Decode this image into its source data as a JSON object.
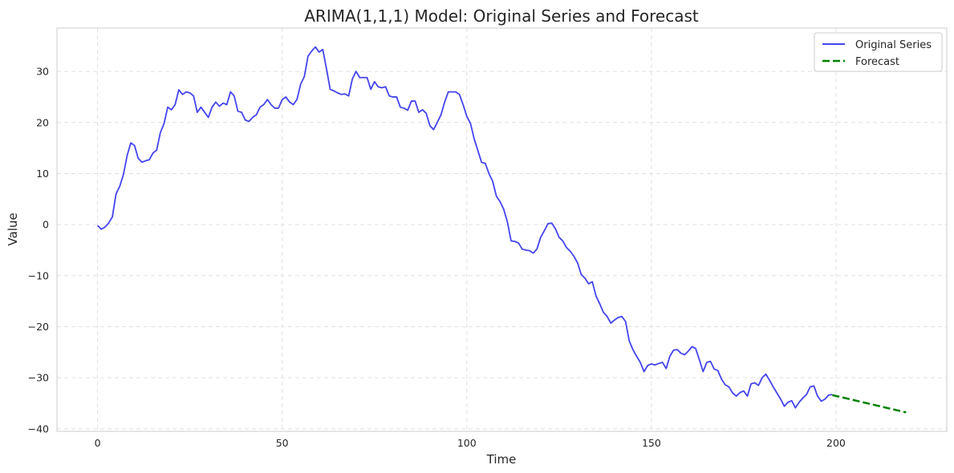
{
  "chart_data": {
    "type": "line",
    "title": "ARIMA(1,1,1) Model: Original Series and Forecast",
    "xlabel": "Time",
    "ylabel": "Value",
    "xlim": [
      -11,
      230
    ],
    "ylim": [
      -40.5,
      38.5
    ],
    "xticks": [
      0,
      50,
      100,
      150,
      200
    ],
    "xtick_labels": [
      "0",
      "50",
      "100",
      "150",
      "200"
    ],
    "yticks": [
      -40,
      -30,
      -20,
      -10,
      0,
      10,
      20,
      30
    ],
    "ytick_labels": [
      "−40",
      "−30",
      "−20",
      "−10",
      "0",
      "10",
      "20",
      "30"
    ],
    "grid": true,
    "legend_position": "top-right",
    "series": [
      {
        "name": "Original Series",
        "color": "#4444ee",
        "style": "solid",
        "x_start": 0,
        "values": [
          -0.2,
          -0.9,
          -0.5,
          0.3,
          1.5,
          6.0,
          7.5,
          9.8,
          13.5,
          16.0,
          15.5,
          13.0,
          12.2,
          12.5,
          12.7,
          14.0,
          14.6,
          18.0,
          19.8,
          23.0,
          22.5,
          23.5,
          26.4,
          25.5,
          26.0,
          25.8,
          25.2,
          22.0,
          23.0,
          22.0,
          21.0,
          23.0,
          24.0,
          23.2,
          23.8,
          23.5,
          26.0,
          25.2,
          22.2,
          22.0,
          20.5,
          20.2,
          21.0,
          21.5,
          23.0,
          23.5,
          24.5,
          23.5,
          22.8,
          22.8,
          24.5,
          25.0,
          24.0,
          23.5,
          24.5,
          27.5,
          29.0,
          33.0,
          34.0,
          34.8,
          33.8,
          34.3,
          30.5,
          26.5,
          26.2,
          25.8,
          25.5,
          25.6,
          25.2,
          28.5,
          30.0,
          28.8,
          28.8,
          28.8,
          26.5,
          28.0,
          27.0,
          26.8,
          27.0,
          25.2,
          25.0,
          25.0,
          23.0,
          22.8,
          22.4,
          24.2,
          24.2,
          22.0,
          22.5,
          21.8,
          19.4,
          18.6,
          20.0,
          21.5,
          24.0,
          26.0,
          26.0,
          26.0,
          25.5,
          23.5,
          21.2,
          19.8,
          16.8,
          14.5,
          12.2,
          12.0,
          10.0,
          8.5,
          5.6,
          4.5,
          3.0,
          0.5,
          -3.2,
          -3.3,
          -3.6,
          -4.8,
          -5.0,
          -5.1,
          -5.6,
          -4.8,
          -2.5,
          -1.2,
          0.2,
          0.3,
          -0.8,
          -2.5,
          -3.2,
          -4.5,
          -5.2,
          -6.2,
          -7.5,
          -9.8,
          -10.5,
          -11.6,
          -11.2,
          -14.0,
          -15.5,
          -17.2,
          -18.0,
          -19.3,
          -18.7,
          -18.2,
          -18.0,
          -19.0,
          -22.8,
          -24.5,
          -25.8,
          -27.0,
          -28.8,
          -27.6,
          -27.3,
          -27.5,
          -27.2,
          -27.0,
          -28.2,
          -25.8,
          -24.6,
          -24.5,
          -25.2,
          -25.5,
          -24.8,
          -23.9,
          -24.3,
          -26.5,
          -28.8,
          -27.0,
          -26.8,
          -28.3,
          -28.6,
          -30.3,
          -31.4,
          -31.8,
          -33.0,
          -33.6,
          -32.9,
          -32.6,
          -33.6,
          -31.2,
          -31.0,
          -31.5,
          -30.0,
          -29.3,
          -30.5,
          -31.8,
          -33.0,
          -34.2,
          -35.6,
          -34.8,
          -34.5,
          -35.9,
          -34.8,
          -34.0,
          -33.3,
          -31.8,
          -31.6,
          -33.6,
          -34.6,
          -34.2,
          -33.4,
          -33.3
        ]
      },
      {
        "name": "Forecast",
        "color": "#008000",
        "style": "dashed",
        "x": [
          199,
          219
        ],
        "values": [
          -33.4,
          -36.8
        ]
      }
    ]
  }
}
